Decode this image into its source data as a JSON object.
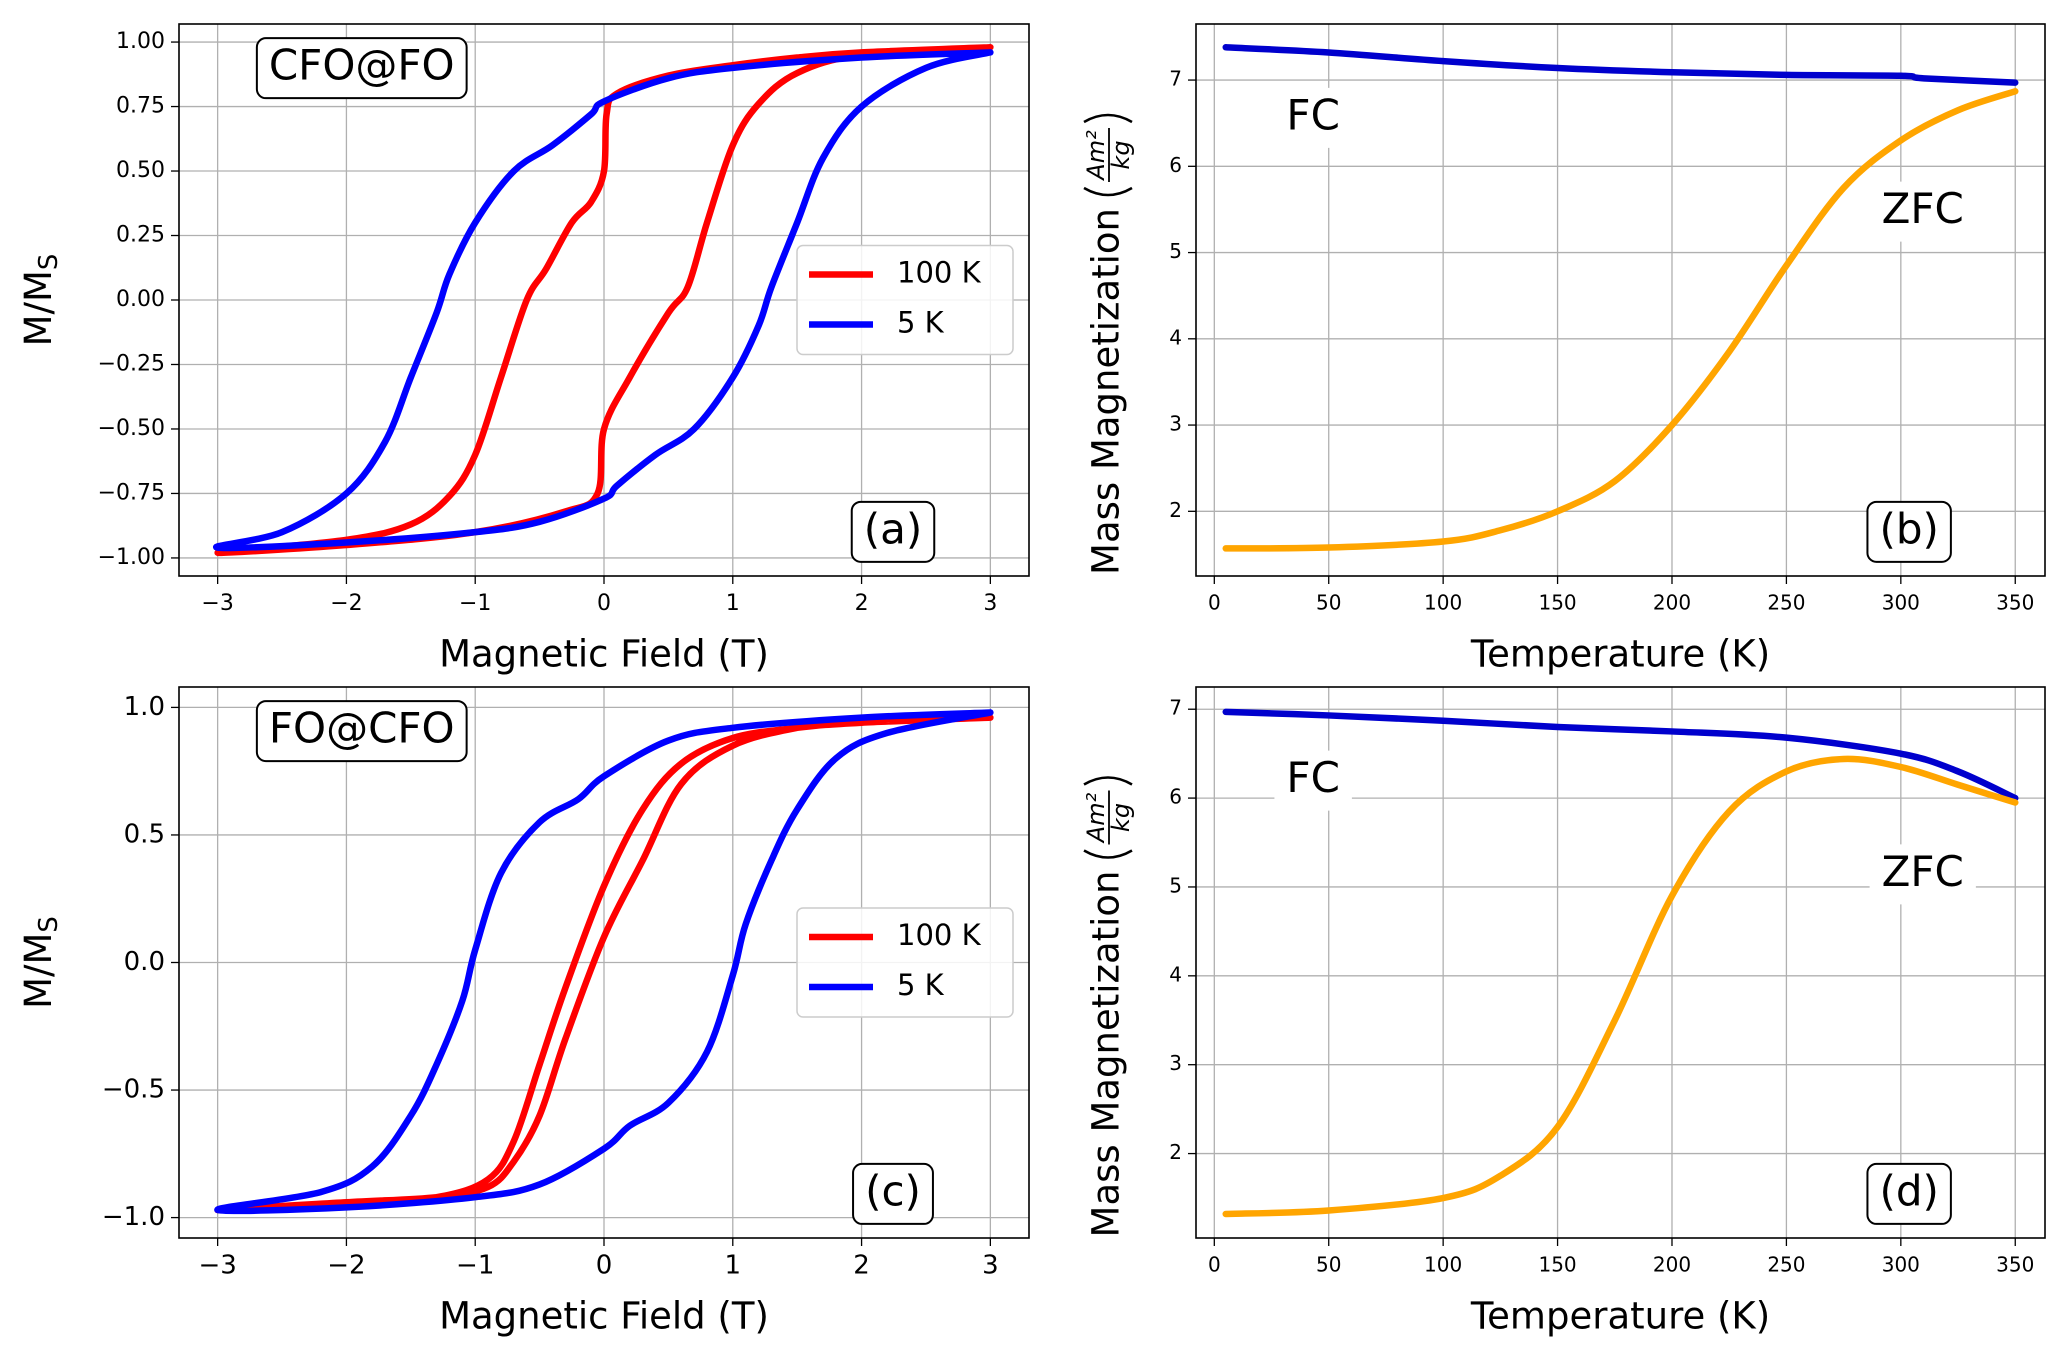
{
  "chart_data": [
    {
      "type": "line",
      "xlabel": "Magnetic Field (T)",
      "ylabel": {
        "text": "M/M",
        "subscript": "S"
      },
      "xlim": [
        -3.3,
        3.3
      ],
      "ylim": [
        -1.07,
        1.07
      ],
      "xticks": [
        {
          "value": -3,
          "label": "−3"
        },
        {
          "value": -2,
          "label": "−2"
        },
        {
          "value": -1,
          "label": "−1"
        },
        0,
        1,
        2,
        3
      ],
      "yticks": [
        {
          "value": -1,
          "label": "−1.00"
        },
        {
          "value": -0.75,
          "label": "−0.75"
        },
        {
          "value": -0.5,
          "label": "−0.50"
        },
        {
          "value": -0.25,
          "label": "−0.25"
        },
        {
          "value": 0,
          "label": "0.00"
        },
        {
          "value": 0.25,
          "label": "0.25"
        },
        {
          "value": 0.5,
          "label": "0.50"
        },
        {
          "value": 0.75,
          "label": "0.75"
        },
        {
          "value": 1,
          "label": "1.00"
        }
      ],
      "grid": true,
      "legend": "center right",
      "annotations": [
        "CFO@FO",
        "(a)"
      ],
      "series": [
        {
          "name": "100 K",
          "color": "#ff0000",
          "x": [
            3,
            2,
            1.5,
            1,
            0.5,
            0.1,
            0.02,
            0,
            -0.1,
            -0.25,
            -0.45,
            -0.6,
            -0.8,
            -1.0,
            -1.2,
            -1.5,
            -2,
            -3,
            -2,
            -1,
            -0.3,
            -0.05,
            0,
            0.2,
            0.5,
            0.65,
            0.8,
            1.0,
            1.2,
            1.5,
            2,
            3
          ],
          "values": [
            0.98,
            0.96,
            0.94,
            0.91,
            0.87,
            0.8,
            0.72,
            0.5,
            0.38,
            0.3,
            0.12,
            0,
            -0.3,
            -0.6,
            -0.76,
            -0.87,
            -0.93,
            -0.98,
            -0.95,
            -0.9,
            -0.82,
            -0.75,
            -0.5,
            -0.3,
            -0.05,
            0.05,
            0.3,
            0.6,
            0.76,
            0.88,
            0.95,
            0.98
          ]
        },
        {
          "name": "5 K",
          "color": "#0000ff",
          "x": [
            3,
            2,
            1,
            0.5,
            0,
            -0.1,
            -0.4,
            -0.7,
            -1.0,
            -1.2,
            -1.3,
            -1.5,
            -1.7,
            -2,
            -2.5,
            -3,
            -2,
            -1,
            -0.5,
            0,
            0.1,
            0.4,
            0.7,
            1.0,
            1.2,
            1.3,
            1.5,
            1.7,
            2,
            2.5,
            3
          ],
          "values": [
            0.96,
            0.94,
            0.9,
            0.86,
            0.77,
            0.72,
            0.6,
            0.5,
            0.3,
            0.1,
            -0.05,
            -0.3,
            -0.55,
            -0.75,
            -0.9,
            -0.96,
            -0.94,
            -0.9,
            -0.86,
            -0.77,
            -0.72,
            -0.6,
            -0.5,
            -0.3,
            -0.1,
            0.05,
            0.3,
            0.55,
            0.75,
            0.9,
            0.96
          ]
        }
      ]
    },
    {
      "type": "line",
      "xlabel": "Temperature (K)",
      "ylabel": "Mass Magnetization",
      "ylabel_unit": {
        "numerator": "Am²",
        "denominator": "kg"
      },
      "xlim": [
        -8,
        363
      ],
      "ylim": [
        1.25,
        7.65
      ],
      "xticks": [
        0,
        50,
        100,
        150,
        200,
        250,
        300,
        350
      ],
      "yticks": [
        2,
        3,
        4,
        5,
        6,
        7
      ],
      "grid": true,
      "annotations": [
        "FC",
        "ZFC",
        "(b)"
      ],
      "series": [
        {
          "color": "#0000cd",
          "x": [
            5,
            50,
            100,
            150,
            200,
            250,
            300,
            310,
            350
          ],
          "values": [
            7.38,
            7.32,
            7.22,
            7.14,
            7.09,
            7.06,
            7.05,
            7.02,
            6.97
          ]
        },
        {
          "color": "#ffa500",
          "x": [
            5,
            50,
            100,
            125,
            150,
            175,
            200,
            225,
            250,
            275,
            300,
            325,
            350
          ],
          "values": [
            1.57,
            1.58,
            1.65,
            1.78,
            2.0,
            2.35,
            3.0,
            3.85,
            4.85,
            5.75,
            6.3,
            6.65,
            6.87
          ]
        }
      ]
    },
    {
      "type": "line",
      "xlabel": "Magnetic Field (T)",
      "ylabel": {
        "text": "M/M",
        "subscript": "S"
      },
      "xlim": [
        -3.3,
        3.3
      ],
      "ylim": [
        -1.08,
        1.08
      ],
      "xticks": [
        {
          "value": -3,
          "label": "−3"
        },
        {
          "value": -2,
          "label": "−2"
        },
        {
          "value": -1,
          "label": "−1"
        },
        0,
        1,
        2,
        3
      ],
      "yticks": [
        {
          "value": -1,
          "label": "−1.0"
        },
        {
          "value": -0.5,
          "label": "−0.5"
        },
        {
          "value": 0,
          "label": "0.0"
        },
        {
          "value": 0.5,
          "label": "0.5"
        },
        {
          "value": 1,
          "label": "1.0"
        }
      ],
      "grid": true,
      "legend": "center right",
      "annotations": [
        "FO@CFO",
        "(c)"
      ],
      "series": [
        {
          "name": "100 K",
          "color": "#ff0000",
          "x": [
            3,
            2,
            1.5,
            1,
            0.6,
            0.3,
            0,
            -0.3,
            -0.5,
            -0.7,
            -0.9,
            -1.3,
            -2,
            -3,
            -2,
            -1.3,
            -0.9,
            -0.7,
            -0.5,
            -0.3,
            0,
            0.3,
            0.6,
            1,
            1.5,
            2,
            3
          ],
          "values": [
            0.96,
            0.94,
            0.92,
            0.88,
            0.78,
            0.6,
            0.3,
            -0.1,
            -0.4,
            -0.7,
            -0.85,
            -0.92,
            -0.95,
            -0.97,
            -0.94,
            -0.92,
            -0.88,
            -0.78,
            -0.6,
            -0.3,
            0.1,
            0.4,
            0.7,
            0.85,
            0.92,
            0.95,
            0.96
          ]
        },
        {
          "name": "5 K",
          "color": "#0000ff",
          "x": [
            3,
            2,
            1,
            0.5,
            0,
            -0.2,
            -0.5,
            -0.8,
            -1.0,
            -1.1,
            -1.3,
            -1.5,
            -1.8,
            -2.2,
            -3,
            -2,
            -1,
            -0.5,
            0,
            0.2,
            0.5,
            0.8,
            1.0,
            1.1,
            1.3,
            1.5,
            1.8,
            2.2,
            3
          ],
          "values": [
            0.98,
            0.96,
            0.92,
            0.87,
            0.73,
            0.64,
            0.55,
            0.35,
            0.05,
            -0.15,
            -0.4,
            -0.6,
            -0.8,
            -0.9,
            -0.97,
            -0.96,
            -0.92,
            -0.87,
            -0.73,
            -0.64,
            -0.55,
            -0.35,
            -0.05,
            0.15,
            0.4,
            0.6,
            0.8,
            0.9,
            0.98
          ]
        }
      ]
    },
    {
      "type": "line",
      "xlabel": "Temperature (K)",
      "ylabel": "Mass Magnetization",
      "ylabel_unit": {
        "numerator": "Am²",
        "denominator": "kg"
      },
      "xlim": [
        -8,
        363
      ],
      "ylim": [
        1.05,
        7.25
      ],
      "xticks": [
        0,
        50,
        100,
        150,
        200,
        250,
        300,
        350
      ],
      "yticks": [
        2,
        3,
        4,
        5,
        6,
        7
      ],
      "grid": true,
      "annotations": [
        "FC",
        "ZFC",
        "(d)"
      ],
      "series": [
        {
          "color": "#0000cd",
          "x": [
            5,
            50,
            100,
            150,
            200,
            250,
            300,
            325,
            350
          ],
          "values": [
            6.97,
            6.93,
            6.87,
            6.8,
            6.75,
            6.68,
            6.5,
            6.3,
            6.0
          ]
        },
        {
          "color": "#ffa500",
          "x": [
            5,
            50,
            100,
            125,
            150,
            175,
            200,
            225,
            250,
            275,
            300,
            325,
            350
          ],
          "values": [
            1.32,
            1.36,
            1.5,
            1.75,
            2.3,
            3.5,
            4.9,
            5.85,
            6.3,
            6.44,
            6.35,
            6.15,
            5.95
          ]
        }
      ]
    }
  ]
}
